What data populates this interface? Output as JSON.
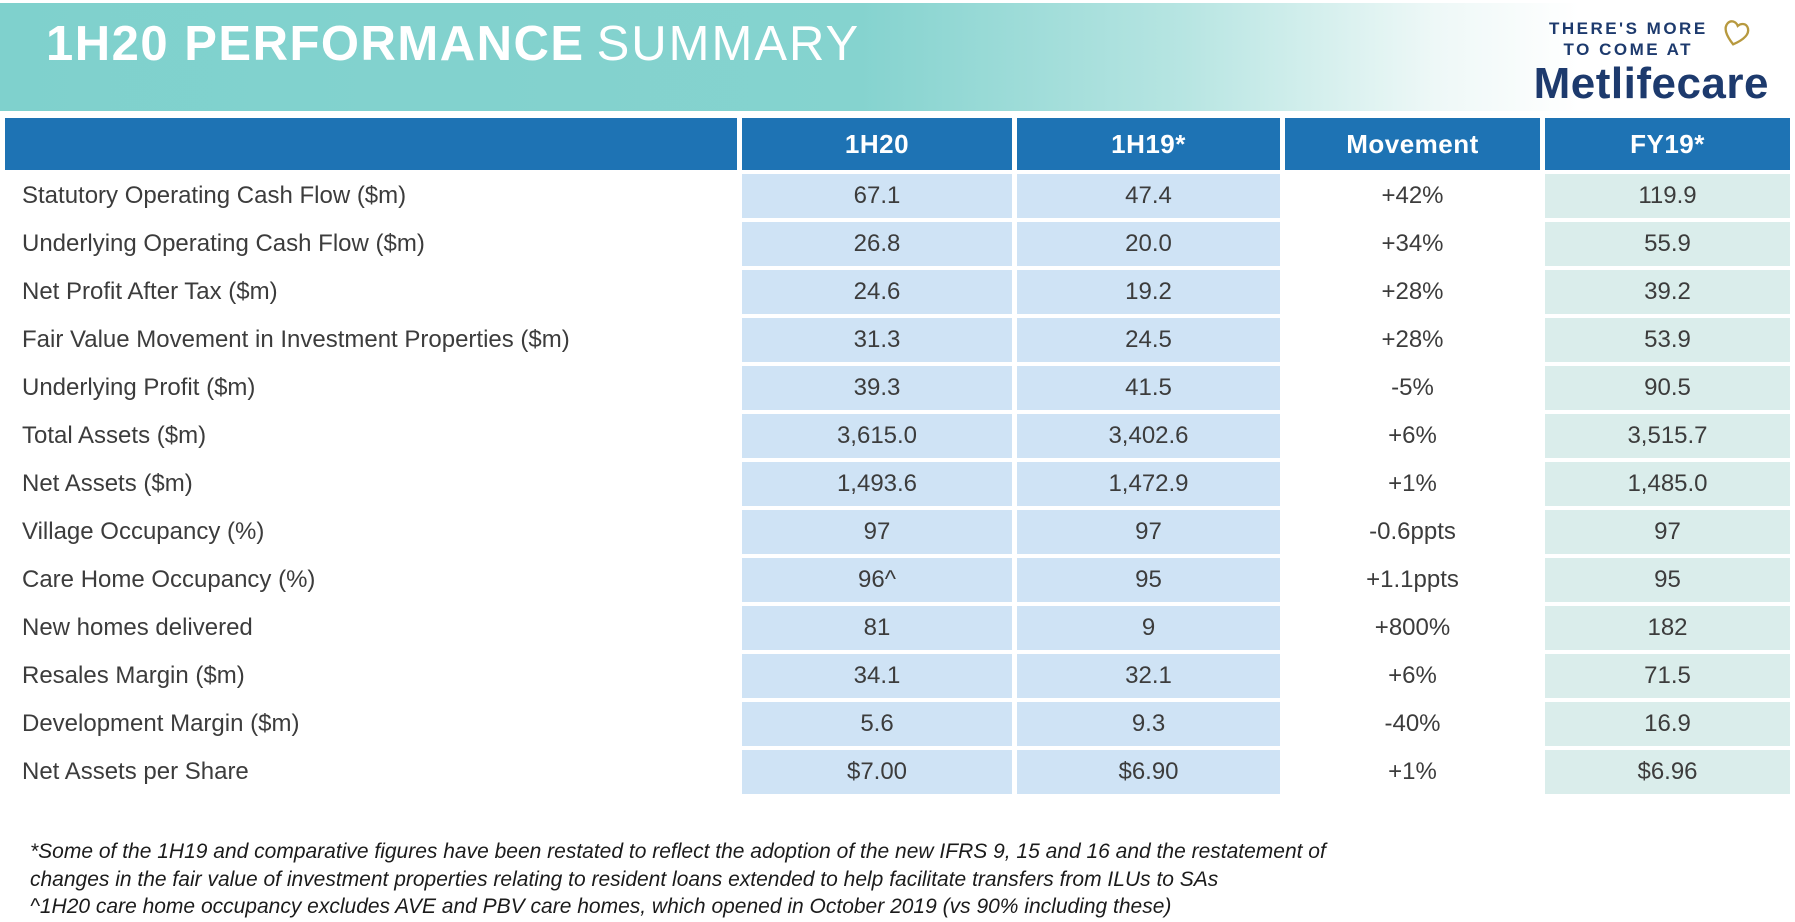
{
  "banner": {
    "title_bold": "1H20 PERFORMANCE",
    "title_light": "SUMMARY"
  },
  "logo": {
    "tagline_line1": "THERE'S MORE",
    "tagline_line2": "TO COME AT",
    "brand": "Metlifecare",
    "heart_icon": "heart-outline",
    "navy_color": "#1d3a6d",
    "gold_color": "#b7993f"
  },
  "colors": {
    "banner_teal": "#7fd1cd",
    "header_blue": "#1e73b4",
    "cell_blue": "#cfe3f5",
    "cell_mint": "#daedeb",
    "text_dark": "#3c3c3c"
  },
  "table": {
    "headers": [
      "",
      "1H20",
      "1H19*",
      "Movement",
      "FY19*"
    ],
    "rows": [
      {
        "label": "Statutory Operating Cash Flow ($m)",
        "values": [
          "67.1",
          "47.4",
          "+42%",
          "119.9"
        ]
      },
      {
        "label": "Underlying Operating Cash Flow ($m)",
        "values": [
          "26.8",
          "20.0",
          "+34%",
          "55.9"
        ]
      },
      {
        "label": "Net Profit After Tax ($m)",
        "values": [
          "24.6",
          "19.2",
          "+28%",
          "39.2"
        ]
      },
      {
        "label": "Fair Value Movement in Investment Properties ($m)",
        "values": [
          "31.3",
          "24.5",
          "+28%",
          "53.9"
        ]
      },
      {
        "label": "Underlying Profit ($m)",
        "values": [
          "39.3",
          "41.5",
          "-5%",
          "90.5"
        ]
      },
      {
        "label": "Total Assets ($m)",
        "values": [
          "3,615.0",
          "3,402.6",
          "+6%",
          "3,515.7"
        ]
      },
      {
        "label": "Net Assets ($m)",
        "values": [
          "1,493.6",
          "1,472.9",
          "+1%",
          "1,485.0"
        ]
      },
      {
        "label": "Village Occupancy (%)",
        "values": [
          "97",
          "97",
          "-0.6ppts",
          "97"
        ]
      },
      {
        "label": "Care Home Occupancy (%)",
        "values": [
          "96^",
          "95",
          "+1.1ppts",
          "95"
        ]
      },
      {
        "label": "New homes delivered",
        "values": [
          "81",
          "9",
          "+800%",
          "182"
        ]
      },
      {
        "label": "Resales Margin ($m)",
        "values": [
          "34.1",
          "32.1",
          "+6%",
          "71.5"
        ]
      },
      {
        "label": "Development Margin ($m)",
        "values": [
          "5.6",
          "9.3",
          "-40%",
          "16.9"
        ]
      },
      {
        "label": "Net Assets per Share",
        "values": [
          "$7.00",
          "$6.90",
          "+1%",
          "$6.96"
        ]
      }
    ]
  },
  "footnotes": [
    "*Some of the 1H19 and comparative figures have been restated to reflect the adoption of the new IFRS 9, 15 and 16 and the restatement of changes in the fair value  of investment properties relating to resident loans extended to help facilitate transfers from ILUs to SAs",
    "^1H20 care home occupancy excludes AVE and PBV care homes, which opened in October 2019 (vs 90% including these)"
  ]
}
